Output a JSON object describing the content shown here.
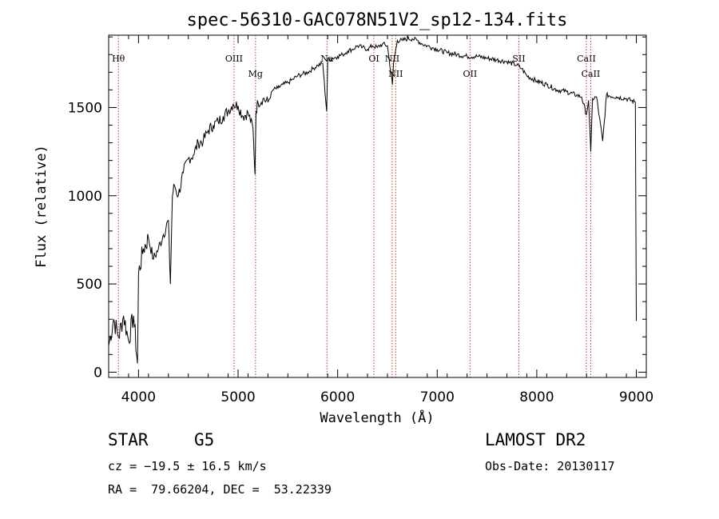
{
  "chart_data": {
    "type": "line",
    "title": "spec-56310-GAC078N51V2_sp12-134.fits",
    "xlabel": "Wavelength (Å)",
    "ylabel": "Flux (relative)",
    "xlim": [
      3700,
      9100
    ],
    "ylim": [
      -30,
      1910
    ],
    "xticks": [
      4000,
      5000,
      6000,
      7000,
      8000,
      9000
    ],
    "yticks": [
      0,
      500,
      1000,
      1500
    ],
    "spectrum": {
      "name": "flux",
      "x": [
        3700,
        3750,
        3800,
        3850,
        3900,
        3950,
        3990,
        4000,
        4050,
        4100,
        4150,
        4200,
        4250,
        4300,
        4320,
        4340,
        4360,
        4400,
        4450,
        4500,
        4550,
        4600,
        4650,
        4700,
        4750,
        4800,
        4850,
        4900,
        4950,
        5000,
        5050,
        5100,
        5150,
        5170,
        5180,
        5200,
        5250,
        5300,
        5350,
        5400,
        5450,
        5500,
        5550,
        5600,
        5650,
        5700,
        5750,
        5800,
        5850,
        5890,
        5900,
        5950,
        6000,
        6050,
        6100,
        6150,
        6200,
        6250,
        6300,
        6350,
        6400,
        6450,
        6500,
        6550,
        6563,
        6600,
        6650,
        6700,
        6750,
        6800,
        6850,
        6900,
        6950,
        7000,
        7100,
        7200,
        7300,
        7400,
        7500,
        7600,
        7700,
        7800,
        7850,
        7900,
        8000,
        8100,
        8200,
        8300,
        8400,
        8450,
        8498,
        8520,
        8542,
        8560,
        8600,
        8662,
        8700,
        8800,
        8900,
        8990,
        9000
      ],
      "y": [
        150,
        300,
        200,
        320,
        180,
        320,
        50,
        560,
        700,
        760,
        640,
        700,
        780,
        860,
        500,
        1000,
        1060,
        1000,
        1130,
        1210,
        1230,
        1300,
        1310,
        1370,
        1400,
        1420,
        1450,
        1480,
        1520,
        1510,
        1450,
        1470,
        1380,
        1120,
        1480,
        1530,
        1550,
        1530,
        1600,
        1610,
        1630,
        1640,
        1660,
        1680,
        1690,
        1700,
        1720,
        1740,
        1750,
        1480,
        1770,
        1780,
        1790,
        1800,
        1820,
        1830,
        1850,
        1840,
        1830,
        1850,
        1840,
        1860,
        1850,
        1630,
        1760,
        1880,
        1880,
        1890,
        1890,
        1880,
        1860,
        1850,
        1840,
        1830,
        1810,
        1800,
        1790,
        1790,
        1780,
        1770,
        1760,
        1740,
        1720,
        1680,
        1650,
        1630,
        1600,
        1590,
        1570,
        1560,
        1460,
        1540,
        1250,
        1550,
        1560,
        1310,
        1570,
        1560,
        1550,
        1530,
        290
      ]
    },
    "lines": [
      {
        "label": "Hθ",
        "wavelength": 3798
      },
      {
        "label": "OIII",
        "wavelength": 4959
      },
      {
        "label": "Mg",
        "wavelength": 5175
      },
      {
        "label": "Na",
        "wavelength": 5893
      },
      {
        "label": "OI",
        "wavelength": 6364
      },
      {
        "label": "NII",
        "wavelength": 6548
      },
      {
        "label": "NII",
        "wavelength": 6583
      },
      {
        "label": "OII",
        "wavelength": 7330
      },
      {
        "label": "SII",
        "wavelength": 7820
      },
      {
        "label": "CaII",
        "wavelength": 8498
      },
      {
        "label": "CaII",
        "wavelength": 8542
      }
    ]
  },
  "info": {
    "object_type": "STAR",
    "subclass": "G5",
    "survey": "LAMOST DR2",
    "cz": "cz = −19.5 ± 16.5 km/s",
    "obs_date": "Obs-Date: 20130117",
    "coords": "RA =  79.66204, DEC =  53.22339"
  }
}
